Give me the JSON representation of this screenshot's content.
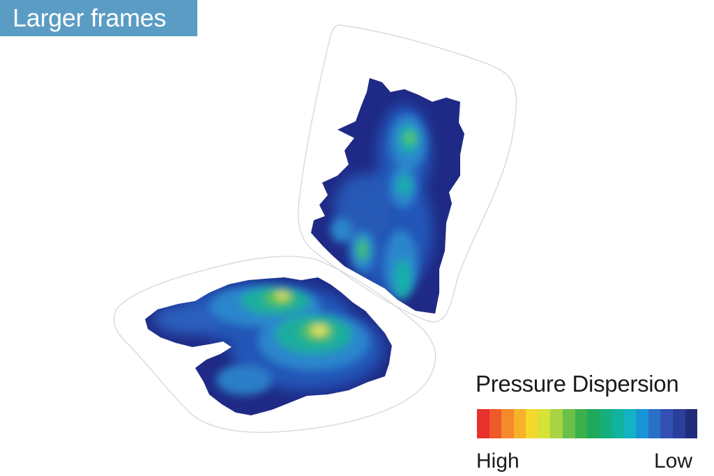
{
  "header": {
    "title": "Larger frames"
  },
  "legend": {
    "title": "Pressure Dispersion",
    "high_label": "High",
    "low_label": "Low",
    "scale_colors": [
      "#e8302c",
      "#ef5a2a",
      "#f48a2a",
      "#f7b12a",
      "#f3d92c",
      "#d5e237",
      "#a8d443",
      "#6cc04a",
      "#3bb04b",
      "#1fa95a",
      "#16ae7a",
      "#12b39e",
      "#13b2c4",
      "#1795d6",
      "#2a6fc8",
      "#3450b2",
      "#2a3f9c",
      "#212c7a"
    ]
  },
  "colors": {
    "badge_background": "#5b9cc4",
    "outline": "#d6d6d6",
    "low": "#1f2a86",
    "mid": "#2a7fd0",
    "teal": "#18b5a6",
    "green": "#4cc05a",
    "high": "#f5e05a"
  }
}
